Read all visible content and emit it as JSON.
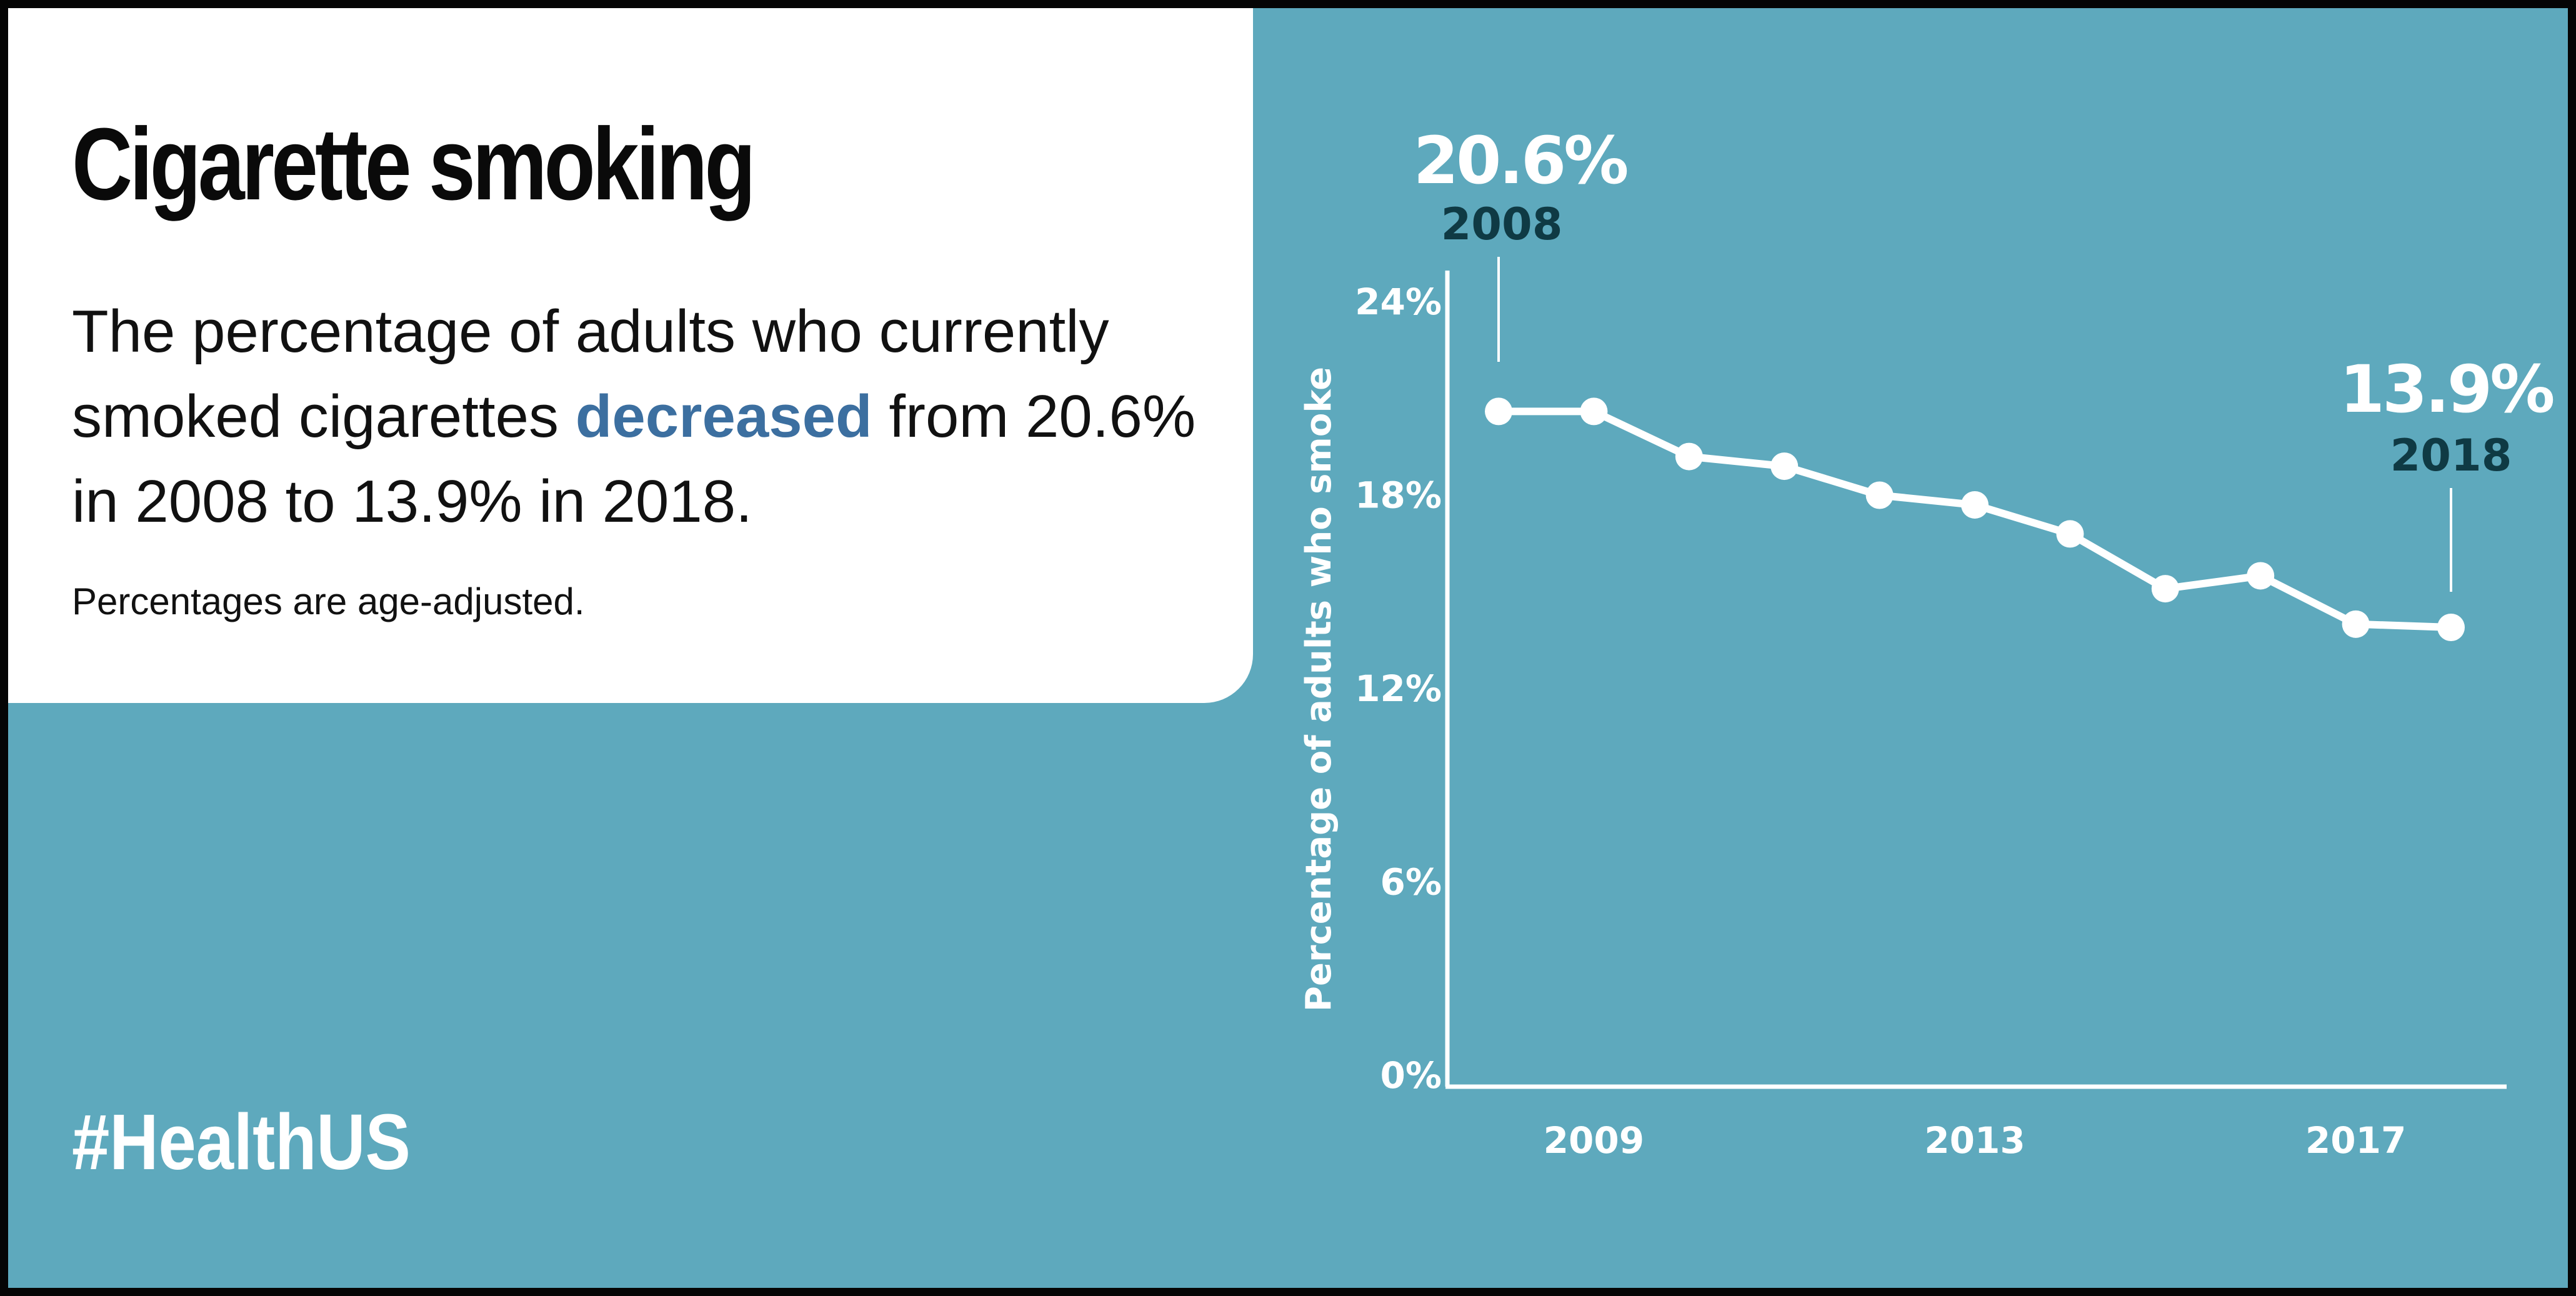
{
  "panel": {
    "title": "Cigarette smoking",
    "desc_before": "The percentage of adults who currently smoked cigarettes ",
    "desc_highlight": "decreased",
    "desc_after": " from 20.6% in 2008 to 13.9% in 2018.",
    "note": "Percentages are age-adjusted."
  },
  "hashtag": "#HealthUS",
  "colors": {
    "background": "#5ea9bd",
    "panel": "#ffffff",
    "highlight": "#3c6fa0",
    "line": "#ffffff",
    "callout_year": "#0f3a44"
  },
  "chart_data": {
    "type": "line",
    "x": [
      2008,
      2009,
      2010,
      2011,
      2012,
      2013,
      2014,
      2015,
      2016,
      2017,
      2018
    ],
    "series": [
      {
        "values": [
          20.6,
          20.6,
          19.2,
          18.9,
          18.0,
          17.7,
          16.8,
          15.1,
          15.5,
          14.0,
          13.9
        ]
      }
    ],
    "ylabel": "Percentage of adults who smoke",
    "xlabel": "",
    "ylim": [
      0,
      24
    ],
    "xlim": [
      2007.6,
      2018.5
    ],
    "y_ticks": [
      "0%",
      "6%",
      "12%",
      "18%",
      "24%"
    ],
    "y_tick_values": [
      0,
      6,
      12,
      18,
      24
    ],
    "x_ticks": [
      "2009",
      "2013",
      "2017"
    ],
    "x_tick_values": [
      2009,
      2013,
      2017
    ],
    "grid": false,
    "annotations": [
      {
        "value": "20.6%",
        "year": "2008",
        "x": 2008,
        "y": 20.6
      },
      {
        "value": "13.9%",
        "year": "2018",
        "x": 2018,
        "y": 13.9
      }
    ]
  }
}
